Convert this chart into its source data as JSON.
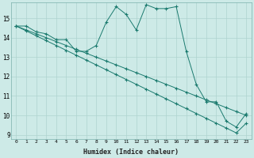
{
  "xlabel": "Humidex (Indice chaleur)",
  "ylabel": "",
  "x_values": [
    0,
    1,
    2,
    3,
    4,
    5,
    6,
    7,
    8,
    9,
    10,
    11,
    12,
    13,
    14,
    15,
    16,
    17,
    18,
    19,
    20,
    21,
    22,
    23
  ],
  "line1_y": [
    14.6,
    14.6,
    14.3,
    14.2,
    13.9,
    13.9,
    13.3,
    13.3,
    13.6,
    14.8,
    15.6,
    15.2,
    14.4,
    15.7,
    15.5,
    15.5,
    15.6,
    13.3,
    11.6,
    10.7,
    10.7,
    9.7,
    9.4,
    10.1
  ],
  "line2_y": [
    14.6,
    14.4,
    14.2,
    14.0,
    13.8,
    13.6,
    13.4,
    13.2,
    13.0,
    12.8,
    12.6,
    12.4,
    12.2,
    12.0,
    11.8,
    11.6,
    11.4,
    11.2,
    11.0,
    10.8,
    10.6,
    10.4,
    10.2,
    10.0
  ],
  "line3_y": [
    14.6,
    14.35,
    14.1,
    13.85,
    13.6,
    13.35,
    13.1,
    12.85,
    12.6,
    12.35,
    12.1,
    11.85,
    11.6,
    11.35,
    11.1,
    10.85,
    10.6,
    10.35,
    10.1,
    9.85,
    9.6,
    9.35,
    9.1,
    9.6
  ],
  "line_color": "#1a7a6e",
  "bg_color": "#cdeae7",
  "grid_color": "#aed4d0",
  "ylim_min": 8.8,
  "ylim_max": 15.8,
  "xlim_min": -0.5,
  "xlim_max": 23.5,
  "yticks": [
    9,
    10,
    11,
    12,
    13,
    14,
    15
  ],
  "xticks": [
    0,
    1,
    2,
    3,
    4,
    5,
    6,
    7,
    8,
    9,
    10,
    11,
    12,
    13,
    14,
    15,
    16,
    17,
    18,
    19,
    20,
    21,
    22,
    23
  ]
}
